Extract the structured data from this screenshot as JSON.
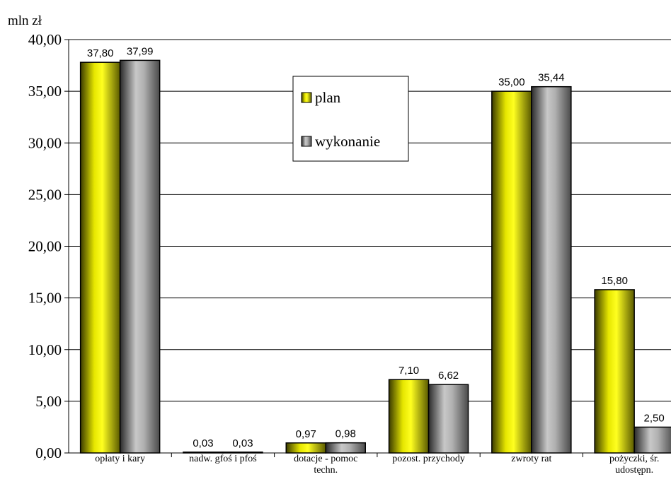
{
  "chart_data": {
    "type": "bar",
    "ylabel": "mln zł",
    "ylim": [
      0,
      40
    ],
    "yticks": [
      "0,00",
      "5,00",
      "10,00",
      "15,00",
      "20,00",
      "25,00",
      "30,00",
      "35,00",
      "40,00"
    ],
    "grid": true,
    "legend_position": "top-center",
    "categories": [
      [
        "opłaty i kary"
      ],
      [
        "nadw. gfoś i pfoś"
      ],
      [
        "dotacje - pomoc",
        "techn."
      ],
      [
        "pozost. przychody"
      ],
      [
        "zwroty rat"
      ],
      [
        "pożyczki, śr.",
        "udostępn."
      ]
    ],
    "series": [
      {
        "name": "plan",
        "values": [
          37.8,
          0.03,
          0.97,
          7.1,
          35.0,
          15.8
        ],
        "labels": [
          "37,80",
          "0,03",
          "0,97",
          "7,10",
          "35,00",
          "15,80"
        ],
        "color": "#e6e600"
      },
      {
        "name": "wykonanie",
        "values": [
          37.99,
          0.03,
          0.98,
          6.62,
          35.44,
          2.5
        ],
        "labels": [
          "37,99",
          "0,03",
          "0,98",
          "6,62",
          "35,44",
          "2,50"
        ],
        "color": "#a0a0a0"
      }
    ]
  }
}
